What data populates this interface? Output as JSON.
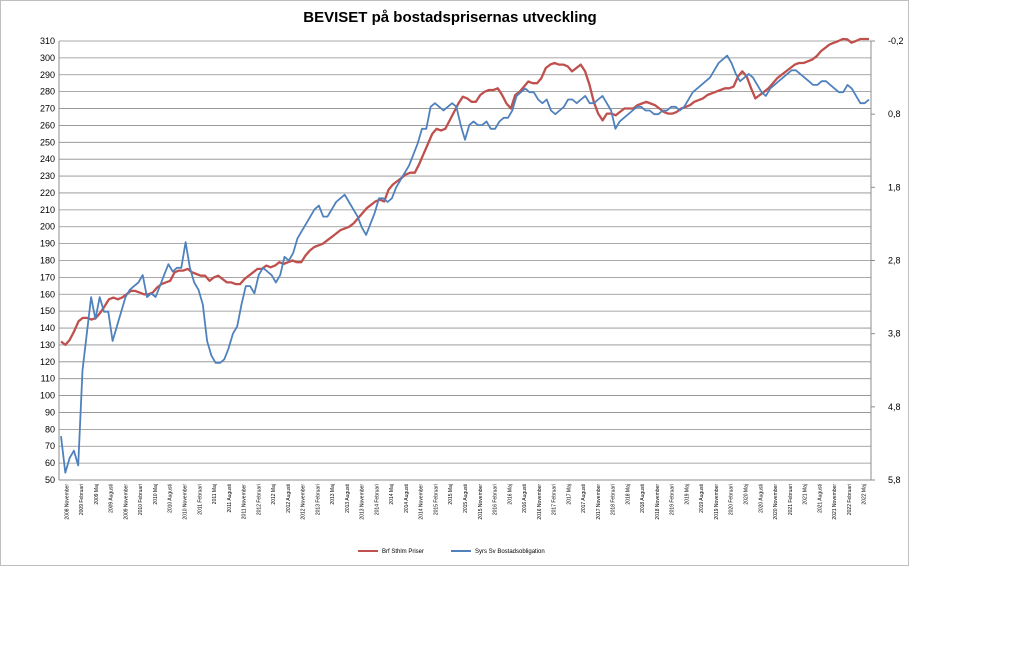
{
  "chart_data": {
    "type": "line",
    "title": "BEVISET på bostadsprisernas utveckling",
    "grid": true,
    "legend_position": "bottom",
    "y_left": {
      "min": 50,
      "max": 310,
      "step": 10
    },
    "y_right": {
      "min": -0.2,
      "max": 5.8,
      "inverted": true,
      "tick_labels": [
        "-0,2",
        "0,8",
        "1,8",
        "2,8",
        "3,8",
        "4,8",
        "5,8"
      ]
    },
    "x_labels": [
      "2008 November",
      "2009 Februari",
      "2009 Maj",
      "2009 Augusti",
      "2009 November",
      "2010 Februari",
      "2010 Maj",
      "2010 Augusti",
      "2010 November",
      "2011 Februari",
      "2011 Maj",
      "2011 Augusti",
      "2011 November",
      "2012 Februari",
      "2012 Maj",
      "2012 Augusti",
      "2012 November",
      "2013 Februari",
      "2013 Maj",
      "2013 Augusti",
      "2013 November",
      "2014 Februari",
      "2014 Maj",
      "2014 Augusti",
      "2014 November",
      "2015 Februari",
      "2015 Maj",
      "2015 Augusti",
      "2015 November",
      "2016 Februari",
      "2016 Maj",
      "2016 Augusti",
      "2016 November",
      "2017 Februari",
      "2017 Maj",
      "2017 Augusti",
      "2017 November",
      "2018 Februari",
      "2018 Maj",
      "2018 Augusti",
      "2018 November",
      "2019 Februari",
      "2019 Maj",
      "2019 Augusti",
      "2019 November",
      "2020 Februari",
      "2020 Maj",
      "2020 Augusti",
      "2020 November",
      "2021 Februari",
      "2021 Maj",
      "2021 Augusti",
      "2021 November",
      "2022 Februari",
      "2022 Maj"
    ],
    "series": [
      {
        "name": "Brf Sthlm Priser",
        "axis": "left",
        "color": "#c0504d",
        "values": [
          132,
          130,
          133,
          138,
          144,
          146,
          146,
          145,
          146,
          149,
          153,
          157,
          158,
          157,
          158,
          160,
          162,
          162,
          161,
          160,
          160,
          161,
          164,
          166,
          167,
          168,
          173,
          174,
          174,
          175,
          173,
          172,
          171,
          171,
          168,
          170,
          171,
          169,
          167,
          167,
          166,
          166,
          169,
          171,
          173,
          175,
          175,
          177,
          176,
          177,
          179,
          178,
          179,
          180,
          179,
          179,
          183,
          186,
          188,
          189,
          190,
          192,
          194,
          196,
          198,
          199,
          200,
          202,
          205,
          208,
          211,
          213,
          215,
          216,
          215,
          222,
          225,
          227,
          229,
          231,
          232,
          232,
          237,
          243,
          249,
          255,
          258,
          257,
          258,
          263,
          268,
          273,
          277,
          276,
          274,
          274,
          278,
          280,
          281,
          281,
          282,
          278,
          273,
          270,
          278,
          280,
          283,
          286,
          285,
          285,
          288,
          294,
          296,
          297,
          296,
          296,
          295,
          292,
          294,
          296,
          292,
          284,
          274,
          267,
          263,
          267,
          267,
          266,
          268,
          270,
          270,
          270,
          272,
          273,
          274,
          273,
          272,
          270,
          268,
          267,
          267,
          268,
          270,
          271,
          272,
          274,
          275,
          276,
          278,
          279,
          280,
          281,
          282,
          282,
          283,
          289,
          292,
          289,
          282,
          276,
          278,
          280,
          282,
          285,
          288,
          290,
          292,
          294,
          296,
          297,
          297,
          298,
          299,
          301,
          304,
          306,
          308,
          309,
          310,
          312,
          311,
          309,
          310,
          312,
          314,
          316
        ]
      },
      {
        "name": "Syrs Sv Bostadsobligation",
        "axis": "right",
        "color": "#4f81bd",
        "values": [
          5.2,
          5.7,
          5.5,
          5.4,
          5.6,
          4.3,
          3.8,
          3.3,
          3.6,
          3.3,
          3.5,
          3.5,
          3.9,
          3.7,
          3.5,
          3.3,
          3.2,
          3.15,
          3.1,
          3.0,
          3.3,
          3.25,
          3.3,
          3.15,
          3.0,
          2.85,
          2.95,
          2.9,
          2.9,
          2.55,
          2.9,
          3.1,
          3.2,
          3.4,
          3.9,
          4.1,
          4.2,
          4.2,
          4.15,
          4.0,
          3.8,
          3.7,
          3.4,
          3.15,
          3.15,
          3.25,
          3.0,
          2.9,
          2.95,
          3.0,
          3.1,
          3.0,
          2.75,
          2.8,
          2.7,
          2.5,
          2.4,
          2.3,
          2.2,
          2.1,
          2.05,
          2.2,
          2.2,
          2.1,
          2.0,
          1.95,
          1.9,
          2.0,
          2.1,
          2.2,
          2.35,
          2.45,
          2.3,
          2.15,
          1.95,
          1.95,
          2.0,
          1.95,
          1.8,
          1.7,
          1.6,
          1.5,
          1.35,
          1.2,
          1.0,
          1.0,
          0.7,
          0.65,
          0.7,
          0.75,
          0.7,
          0.65,
          0.7,
          0.95,
          1.15,
          0.95,
          0.9,
          0.95,
          0.95,
          0.9,
          1.0,
          1.0,
          0.9,
          0.85,
          0.85,
          0.75,
          0.55,
          0.5,
          0.45,
          0.5,
          0.5,
          0.6,
          0.65,
          0.6,
          0.75,
          0.8,
          0.75,
          0.7,
          0.6,
          0.6,
          0.65,
          0.6,
          0.55,
          0.65,
          0.65,
          0.6,
          0.55,
          0.65,
          0.75,
          1.0,
          0.9,
          0.85,
          0.8,
          0.75,
          0.7,
          0.7,
          0.75,
          0.75,
          0.8,
          0.8,
          0.75,
          0.75,
          0.7,
          0.7,
          0.75,
          0.7,
          0.6,
          0.5,
          0.45,
          0.4,
          0.35,
          0.3,
          0.2,
          0.1,
          0.05,
          0.0,
          0.1,
          0.25,
          0.35,
          0.3,
          0.25,
          0.3,
          0.4,
          0.5,
          0.55,
          0.45,
          0.4,
          0.35,
          0.3,
          0.25,
          0.2,
          0.2,
          0.25,
          0.3,
          0.35,
          0.4,
          0.4,
          0.35,
          0.35,
          0.4,
          0.45,
          0.5,
          0.5,
          0.4,
          0.45,
          0.55,
          0.65,
          0.65,
          0.6
        ]
      }
    ]
  }
}
